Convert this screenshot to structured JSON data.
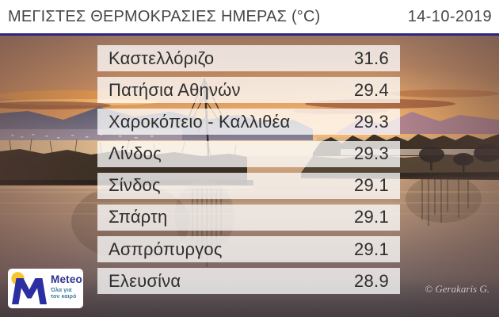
{
  "header": {
    "title": "ΜΕΓΙΣΤΕΣ ΘΕΡΜΟΚΡΑΣΙΕΣ ΗΜΕΡΑΣ (°C)",
    "date": "14-10-2019"
  },
  "chart_data": {
    "type": "table",
    "title": "ΜΕΓΙΣΤΕΣ ΘΕΡΜΟΚΡΑΣΙΕΣ ΗΜΕΡΑΣ (°C)",
    "date": "14-10-2019",
    "unit": "°C",
    "categories": [
      "Καστελλόριζο",
      "Πατήσια Αθηνών",
      "Χαροκόπειο - Καλλιθέα",
      "Λίνδος",
      "Σίνδος",
      "Σπάρτη",
      "Ασπρόπυργος",
      "Ελευσίνα"
    ],
    "values": [
      31.6,
      29.4,
      29.3,
      29.3,
      29.1,
      29.1,
      29.1,
      28.9
    ]
  },
  "table": {
    "rows": [
      {
        "station": "Καστελλόριζο",
        "temp": "31.6"
      },
      {
        "station": "Πατήσια Αθηνών",
        "temp": "29.4"
      },
      {
        "station": "Χαροκόπειο - Καλλιθέα",
        "temp": "29.3"
      },
      {
        "station": "Λίνδος",
        "temp": "29.3"
      },
      {
        "station": "Σίνδος",
        "temp": "29.1"
      },
      {
        "station": "Σπάρτη",
        "temp": "29.1"
      },
      {
        "station": "Ασπρόπυργος",
        "temp": "29.1"
      },
      {
        "station": "Ελευσίνα",
        "temp": "28.9"
      }
    ]
  },
  "logo": {
    "name": "Meteo",
    "tagline_line1": "Όλα για",
    "tagline_line2": "τον καιρό"
  },
  "watermark": "© Gerakaris G.",
  "colors": {
    "divider": "#2d2584",
    "header_text": "#474747",
    "row_bg": "rgba(255,255,255,0.76)",
    "row_text": "#2e2e2e",
    "logo_blue": "#2c2fa2",
    "logo_yellow": "#f7c62e",
    "logo_tagline_blue": "#3f7a9e"
  }
}
